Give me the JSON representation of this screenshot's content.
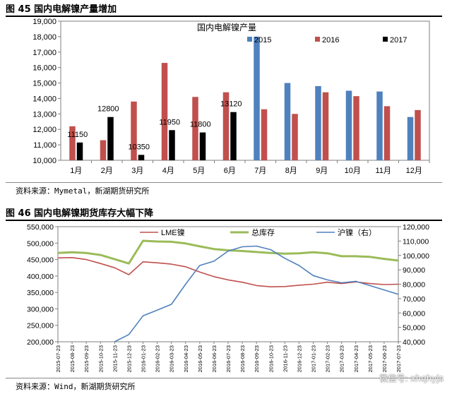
{
  "figures": {
    "fig1_title": "图 45 国内电解镍产量增加",
    "fig1_source": "资料来源：Mymetal，新湖期货研究所",
    "fig2_title": "图 46 国内电解镍期货库存大幅下降",
    "fig2_source": "资料来源：Wind，新湖期货研究所",
    "watermark": "微信号: xhqhyjs"
  },
  "chart_data": [
    {
      "type": "bar",
      "title": "国内电解镍产量",
      "categories": [
        "1月",
        "2月",
        "3月",
        "4月",
        "5月",
        "6月",
        "7月",
        "8月",
        "9月",
        "10月",
        "11月",
        "12月"
      ],
      "ylim": [
        10000,
        19000
      ],
      "yticks": [
        "10,000",
        "11,000",
        "12,000",
        "13,000",
        "14,000",
        "15,000",
        "16,000",
        "17,000",
        "18,000",
        "19,000"
      ],
      "grid": false,
      "legend": "top-right",
      "series": [
        {
          "name": "2015",
          "color": "#4f81bd",
          "values": [
            null,
            null,
            null,
            null,
            null,
            null,
            18000,
            15000,
            14800,
            14500,
            14450,
            12800
          ]
        },
        {
          "name": "2016",
          "color": "#c0504d",
          "values": [
            12200,
            11300,
            13800,
            16300,
            14100,
            14400,
            13300,
            13000,
            14400,
            14150,
            13500,
            13250
          ]
        },
        {
          "name": "2017",
          "color": "#000000",
          "values": [
            11150,
            12800,
            10350,
            11950,
            11800,
            13120,
            null,
            null,
            null,
            null,
            null,
            null
          ]
        }
      ],
      "data_labels": [
        "11150",
        "12800",
        "10350",
        "11950",
        "11800",
        "13120"
      ]
    },
    {
      "type": "line",
      "x_ticks": [
        "2015-07-23",
        "2015-08-23",
        "2015-09-23",
        "2015-10-23",
        "2015-11-23",
        "2015-12-23",
        "2016-01-23",
        "2016-02-23",
        "2016-03-23",
        "2016-04-23",
        "2016-05-23",
        "2016-06-23",
        "2016-07-23",
        "2016-08-23",
        "2016-09-23",
        "2016-10-23",
        "2016-11-23",
        "2016-12-23",
        "2017-01-23",
        "2017-02-23",
        "2017-03-23",
        "2017-04-23",
        "2017-05-23",
        "2017-06-23",
        "2017-07-23"
      ],
      "y_left": {
        "ylim": [
          200000,
          550000
        ],
        "ticks": [
          "200,000",
          "250,000",
          "300,000",
          "350,000",
          "400,000",
          "450,000",
          "500,000",
          "550,000"
        ]
      },
      "y_right": {
        "ylim": [
          40000,
          120000
        ],
        "ticks": [
          "40,000",
          "50,000",
          "60,000",
          "70,000",
          "80,000",
          "90,000",
          "100,000",
          "110,000",
          "120,000"
        ]
      },
      "legend": "top",
      "series": [
        {
          "name": "LME镍",
          "axis": "left",
          "color": "#c0504d",
          "width": 1.6,
          "values": [
            455000,
            456000,
            450000,
            438000,
            425000,
            404000,
            443000,
            440000,
            436000,
            428000,
            412000,
            398000,
            388000,
            381000,
            371000,
            367000,
            368000,
            372000,
            375000,
            381000,
            377000,
            382000,
            377000,
            374000,
            375000
          ]
        },
        {
          "name": "总库存",
          "axis": "left",
          "color": "#9bbb59",
          "width": 3,
          "values": [
            470000,
            472000,
            470000,
            464000,
            451000,
            438000,
            507000,
            505000,
            504000,
            499000,
            490000,
            482000,
            478000,
            476000,
            473000,
            470000,
            468000,
            469000,
            472000,
            469000,
            460000,
            460000,
            458000,
            452000,
            447000
          ]
        },
        {
          "name": "沪镍（右）",
          "axis": "right",
          "color": "#4f81bd",
          "width": 1.6,
          "values": [
            null,
            null,
            null,
            null,
            40000,
            45000,
            58000,
            62000,
            66000,
            80000,
            93000,
            96000,
            103000,
            106000,
            106500,
            104000,
            98000,
            93000,
            86000,
            83000,
            81000,
            82000,
            79000,
            76000,
            73000
          ]
        }
      ]
    }
  ]
}
